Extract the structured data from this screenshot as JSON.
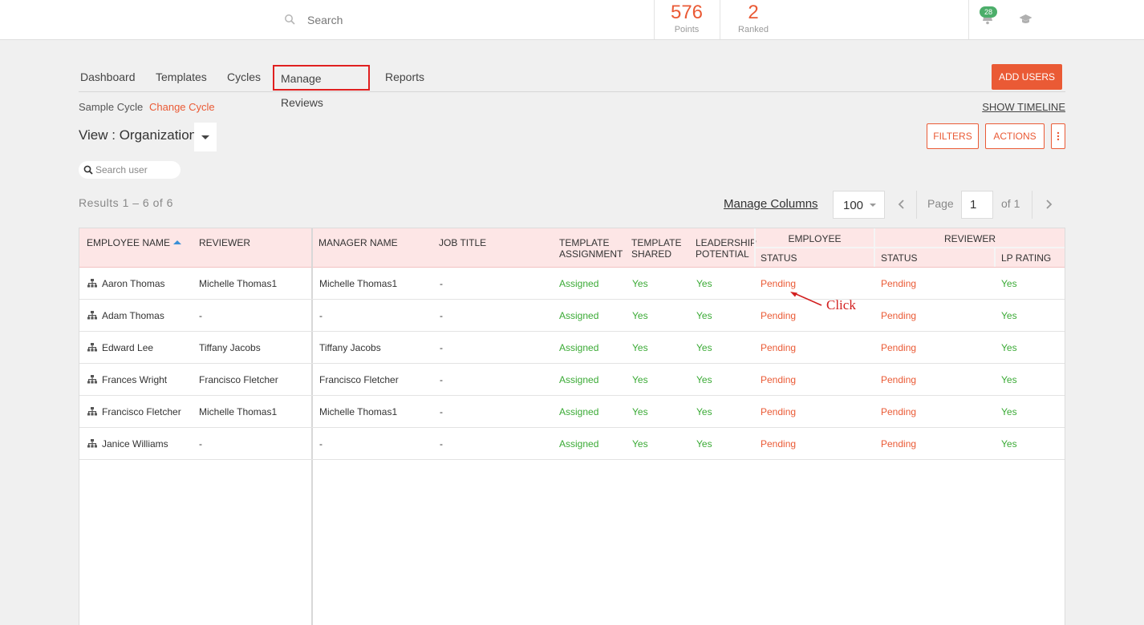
{
  "topbar": {
    "search_placeholder": "Search",
    "points_value": "576",
    "points_label": "Points",
    "ranked_value": "2",
    "ranked_label": "Ranked",
    "notification_count": "28"
  },
  "nav": {
    "tabs": [
      {
        "label": "Dashboard"
      },
      {
        "label": "Templates"
      },
      {
        "label": "Cycles"
      },
      {
        "label": "Manage Reviews",
        "active": true
      },
      {
        "label": "Reports"
      }
    ],
    "add_users_label": "ADD USERS"
  },
  "cycle": {
    "name": "Sample Cycle",
    "change_label": "Change Cycle",
    "show_timeline_label": "SHOW TIMELINE"
  },
  "view": {
    "label": "View : Organization"
  },
  "actions": {
    "filters_label": "FILTERS",
    "actions_label": "ACTIONS"
  },
  "user_search_placeholder": "Search user",
  "results_text": "Results 1 – 6 of 6",
  "pagination": {
    "manage_columns_label": "Manage Columns",
    "page_size": "100",
    "page_label": "Page",
    "current_page": "1",
    "of_label": "of 1"
  },
  "table": {
    "headers": {
      "employee_name": "EMPLOYEE NAME",
      "reviewer": "REVIEWER",
      "manager_name": "MANAGER NAME",
      "job_title": "JOB TITLE",
      "template_assignment": [
        "TEMPLATE",
        "ASSIGNMENT"
      ],
      "template_shared": [
        "TEMPLATE",
        "SHARED"
      ],
      "leadership_potential": [
        "LEADERSHIP",
        "POTENTIAL"
      ],
      "employee_group": "EMPLOYEE",
      "employee_status": "STATUS",
      "reviewer_group": "REVIEWER",
      "reviewer_status": "STATUS",
      "lp_rating": "LP RATING"
    },
    "rows": [
      {
        "employee": "Aaron Thomas",
        "reviewer": "Michelle Thomas1",
        "manager": "Michelle Thomas1",
        "job_title": "-",
        "template_assignment": "Assigned",
        "template_shared": "Yes",
        "leadership_potential": "Yes",
        "employee_status": "Pending",
        "reviewer_status": "Pending",
        "lp_rating": "Yes"
      },
      {
        "employee": "Adam Thomas",
        "reviewer": "-",
        "manager": "-",
        "job_title": "-",
        "template_assignment": "Assigned",
        "template_shared": "Yes",
        "leadership_potential": "Yes",
        "employee_status": "Pending",
        "reviewer_status": "Pending",
        "lp_rating": "Yes"
      },
      {
        "employee": "Edward Lee",
        "reviewer": "Tiffany Jacobs",
        "manager": "Tiffany Jacobs",
        "job_title": "-",
        "template_assignment": "Assigned",
        "template_shared": "Yes",
        "leadership_potential": "Yes",
        "employee_status": "Pending",
        "reviewer_status": "Pending",
        "lp_rating": "Yes"
      },
      {
        "employee": "Frances Wright",
        "reviewer": "Francisco Fletcher",
        "manager": "Francisco Fletcher",
        "job_title": "-",
        "template_assignment": "Assigned",
        "template_shared": "Yes",
        "leadership_potential": "Yes",
        "employee_status": "Pending",
        "reviewer_status": "Pending",
        "lp_rating": "Yes"
      },
      {
        "employee": "Francisco Fletcher",
        "reviewer": "Michelle Thomas1",
        "manager": "Michelle Thomas1",
        "job_title": "-",
        "template_assignment": "Assigned",
        "template_shared": "Yes",
        "leadership_potential": "Yes",
        "employee_status": "Pending",
        "reviewer_status": "Pending",
        "lp_rating": "Yes"
      },
      {
        "employee": "Janice Williams",
        "reviewer": "-",
        "manager": "-",
        "job_title": "-",
        "template_assignment": "Assigned",
        "template_shared": "Yes",
        "leadership_potential": "Yes",
        "employee_status": "Pending",
        "reviewer_status": "Pending",
        "lp_rating": "Yes"
      }
    ]
  },
  "annotation": {
    "text": "Click"
  },
  "colors": {
    "accent": "#ea5a35",
    "success": "#3aaa35",
    "header_bg": "#fde6e6",
    "badge": "#4cae6a",
    "annotation": "#d21f1f"
  },
  "icons": [
    "search-icon",
    "bell-icon",
    "graduation-cap-icon",
    "org-chart-icon",
    "chevron-left-icon",
    "chevron-right-icon",
    "kebab-menu-icon",
    "sort-ascending-icon"
  ]
}
